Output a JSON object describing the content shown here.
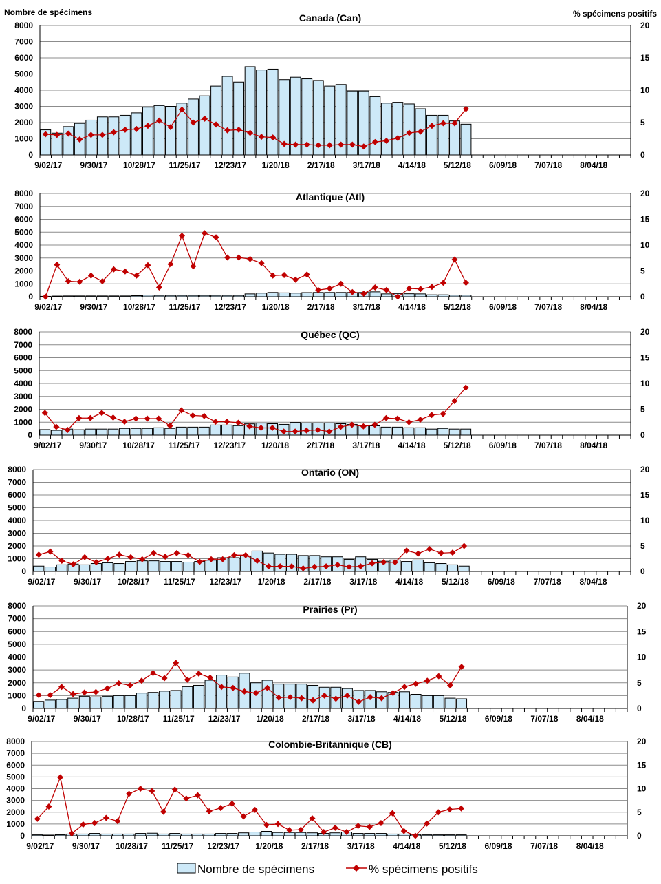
{
  "headers": {
    "left_axis": "Nombre de spécimens",
    "right_axis": "% spécimens positifs"
  },
  "legend": {
    "bars": "Nombre de spécimens",
    "line": "% spécimens positifs"
  },
  "colors": {
    "bar_fill": "#cde9f8",
    "line": "#c00000",
    "grid": "#8c8c8c"
  },
  "chart_data": [
    {
      "type": "bar+line",
      "title": "Canada (Can)",
      "ylim": [
        0,
        8000
      ],
      "y2lim": [
        0,
        20
      ],
      "yticks": [
        0,
        1000,
        2000,
        3000,
        4000,
        5000,
        6000,
        7000,
        8000
      ],
      "y2ticks": [
        0,
        5,
        10,
        15,
        20
      ],
      "xticklabels": [
        "9/02/17",
        "9/30/17",
        "10/28/17",
        "11/25/17",
        "12/23/17",
        "1/20/18",
        "2/17/18",
        "3/17/18",
        "4/14/18",
        "5/12/18",
        "6/09/18",
        "7/07/18",
        "8/04/18"
      ],
      "weeks": 52,
      "specimens": [
        1550,
        1350,
        1750,
        1950,
        2150,
        2350,
        2350,
        2450,
        2600,
        2950,
        3050,
        3000,
        3200,
        3450,
        3650,
        4250,
        4850,
        4500,
        5450,
        5250,
        5300,
        4650,
        4800,
        4700,
        4600,
        4250,
        4350,
        3950,
        3950,
        3600,
        3200,
        3250,
        3150,
        2850,
        2450,
        2450,
        2100,
        1900
      ],
      "pct_positive": [
        3.2,
        3.1,
        3.3,
        2.4,
        3.1,
        3.1,
        3.5,
        3.9,
        4.0,
        4.5,
        5.3,
        4.3,
        7.0,
        5.0,
        5.6,
        4.7,
        3.8,
        3.9,
        3.4,
        2.8,
        2.7,
        1.7,
        1.6,
        1.6,
        1.5,
        1.5,
        1.6,
        1.6,
        1.3,
        2.0,
        2.2,
        2.6,
        3.4,
        3.6,
        4.5,
        4.9,
        4.9,
        7.1
      ]
    },
    {
      "type": "bar+line",
      "title": "Atlantique (Atl)",
      "ylim": [
        0,
        8000
      ],
      "y2lim": [
        0,
        20
      ],
      "yticks": [
        0,
        1000,
        2000,
        3000,
        4000,
        5000,
        6000,
        7000,
        8000
      ],
      "y2ticks": [
        0,
        5,
        10,
        15,
        20
      ],
      "xticklabels": [
        "9/02/17",
        "9/30/17",
        "10/28/17",
        "11/25/17",
        "12/23/17",
        "1/20/18",
        "2/17/18",
        "3/17/18",
        "4/14/18",
        "5/12/18",
        "6/09/18",
        "7/07/18",
        "8/04/18"
      ],
      "weeks": 52,
      "specimens": [
        30,
        50,
        60,
        60,
        60,
        60,
        60,
        60,
        80,
        120,
        100,
        100,
        100,
        100,
        100,
        100,
        100,
        100,
        220,
        280,
        330,
        300,
        280,
        320,
        330,
        330,
        330,
        330,
        330,
        380,
        220,
        250,
        230,
        220,
        150,
        150,
        120,
        120
      ],
      "pct_positive": [
        0,
        6.2,
        3.0,
        2.9,
        4.1,
        3.0,
        5.3,
        4.9,
        4.1,
        6.1,
        1.8,
        6.3,
        11.8,
        5.9,
        12.3,
        11.5,
        7.6,
        7.6,
        7.3,
        6.5,
        4.1,
        4.2,
        3.3,
        4.3,
        1.3,
        1.6,
        2.5,
        0.9,
        0.6,
        1.8,
        1.3,
        0,
        1.6,
        1.5,
        1.9,
        2.7,
        7.2,
        2.7
      ]
    },
    {
      "type": "bar+line",
      "title": "Québec (QC)",
      "ylim": [
        0,
        8000
      ],
      "y2lim": [
        0,
        20
      ],
      "yticks": [
        0,
        1000,
        2000,
        3000,
        4000,
        5000,
        6000,
        7000,
        8000
      ],
      "y2ticks": [
        0,
        5,
        10,
        15,
        20
      ],
      "xticklabels": [
        "9/02/17",
        "9/30/17",
        "10/28/17",
        "11/25/17",
        "12/23/17",
        "1/20/18",
        "2/17/18",
        "3/17/18",
        "4/14/18",
        "5/12/18",
        "6/09/18",
        "7/07/18",
        "8/04/18"
      ],
      "weeks": 52,
      "specimens": [
        430,
        370,
        470,
        420,
        470,
        470,
        470,
        520,
        520,
        520,
        570,
        520,
        620,
        620,
        620,
        780,
        780,
        730,
        870,
        930,
        880,
        830,
        980,
        940,
        940,
        940,
        880,
        830,
        730,
        720,
        620,
        620,
        570,
        570,
        470,
        520,
        470,
        470
      ],
      "pct_positive": [
        4.3,
        1.6,
        1.0,
        3.3,
        3.3,
        4.3,
        3.4,
        2.6,
        3.2,
        3.2,
        3.2,
        1.8,
        4.8,
        3.8,
        3.7,
        2.6,
        2.6,
        2.4,
        1.7,
        1.4,
        1.4,
        0.7,
        0.7,
        0.9,
        1.0,
        0.7,
        1.6,
        2.0,
        1.7,
        2.0,
        3.3,
        3.2,
        2.5,
        3.0,
        3.9,
        4.1,
        6.6,
        9.2
      ]
    },
    {
      "type": "bar+line",
      "title": "Ontario (ON)",
      "ylim": [
        0,
        8000
      ],
      "y2lim": [
        0,
        20
      ],
      "yticks": [
        0,
        1000,
        2000,
        3000,
        4000,
        5000,
        6000,
        7000,
        8000
      ],
      "y2ticks": [
        0,
        5,
        10,
        15,
        20
      ],
      "xticklabels": [
        "9/02/17",
        "9/30/17",
        "10/28/17",
        "11/25/17",
        "12/23/17",
        "1/20/18",
        "2/17/18",
        "3/17/18",
        "4/14/18",
        "5/12/18",
        "6/09/18",
        "7/07/18",
        "8/04/18"
      ],
      "weeks": 52,
      "specimens": [
        420,
        350,
        520,
        580,
        520,
        620,
        680,
        620,
        780,
        830,
        830,
        780,
        780,
        730,
        780,
        880,
        1080,
        1080,
        1220,
        1600,
        1450,
        1350,
        1350,
        1250,
        1250,
        1150,
        1150,
        950,
        1150,
        950,
        800,
        900,
        780,
        900,
        680,
        620,
        520,
        420
      ],
      "pct_positive": [
        3.3,
        3.9,
        2.1,
        1.4,
        2.8,
        1.8,
        2.5,
        3.3,
        2.8,
        2.4,
        3.6,
        2.9,
        3.6,
        3.2,
        1.9,
        2.4,
        2.4,
        3.2,
        3.2,
        2.1,
        1.0,
        1.0,
        1.0,
        0.6,
        0.9,
        1.0,
        1.3,
        0.9,
        1.0,
        1.6,
        1.8,
        1.8,
        4.1,
        3.5,
        4.4,
        3.6,
        3.7,
        5.0
      ]
    },
    {
      "type": "bar+line",
      "title": "Prairies (Pr)",
      "ylim": [
        0,
        8000
      ],
      "y2lim": [
        0,
        20
      ],
      "yticks": [
        0,
        1000,
        2000,
        3000,
        4000,
        5000,
        6000,
        7000,
        8000
      ],
      "y2ticks": [
        0,
        5,
        10,
        15,
        20
      ],
      "xticklabels": [
        "9/02/17",
        "9/30/17",
        "10/28/17",
        "11/25/17",
        "12/23/17",
        "1/20/18",
        "2/17/18",
        "3/17/18",
        "4/14/18",
        "5/12/18",
        "6/09/18",
        "7/07/18",
        "8/04/18"
      ],
      "weeks": 52,
      "specimens": [
        550,
        650,
        700,
        800,
        950,
        900,
        950,
        1000,
        1000,
        1200,
        1250,
        1350,
        1400,
        1700,
        1800,
        2200,
        2600,
        2450,
        2750,
        2000,
        2200,
        1900,
        1900,
        1900,
        1800,
        1650,
        1650,
        1550,
        1400,
        1400,
        1300,
        1250,
        1300,
        1100,
        1000,
        1000,
        800,
        750
      ],
      "pct_positive": [
        2.6,
        2.6,
        4.2,
        2.8,
        3.1,
        3.2,
        3.9,
        4.9,
        4.5,
        5.4,
        6.9,
        5.9,
        8.9,
        5.6,
        6.8,
        6.0,
        4.2,
        4.0,
        3.3,
        3.0,
        4.0,
        2.1,
        2.2,
        2.0,
        1.6,
        2.5,
        1.9,
        2.5,
        1.3,
        2.2,
        2.0,
        3.0,
        4.2,
        4.8,
        5.4,
        6.3,
        4.5,
        8.1
      ]
    },
    {
      "type": "bar+line",
      "title": "Colombie-Britannique (CB)",
      "ylim": [
        0,
        8000
      ],
      "y2lim": [
        0,
        20
      ],
      "yticks": [
        0,
        1000,
        2000,
        3000,
        4000,
        5000,
        6000,
        7000,
        8000
      ],
      "y2ticks": [
        0,
        5,
        10,
        15,
        20
      ],
      "xticklabels": [
        "9/02/17",
        "9/30/17",
        "10/28/17",
        "11/25/17",
        "12/23/17",
        "1/20/18",
        "2/17/18",
        "3/17/18",
        "4/14/18",
        "5/12/18",
        "6/09/18",
        "7/07/18",
        "8/04/18"
      ],
      "weeks": 52,
      "specimens": [
        80,
        60,
        90,
        150,
        150,
        200,
        150,
        150,
        150,
        200,
        220,
        150,
        200,
        150,
        150,
        150,
        200,
        200,
        250,
        320,
        380,
        280,
        280,
        280,
        250,
        200,
        250,
        320,
        200,
        200,
        200,
        150,
        150,
        100,
        80,
        80,
        80,
        80
      ],
      "pct_positive": [
        3.6,
        6.2,
        12.4,
        0.5,
        2.4,
        2.7,
        3.8,
        3.1,
        8.9,
        10.0,
        9.5,
        5.1,
        9.8,
        7.9,
        8.6,
        5.2,
        5.9,
        6.8,
        4.1,
        5.5,
        2.3,
        2.5,
        1.2,
        1.3,
        3.7,
        0.8,
        1.7,
        0.8,
        2.1,
        1.9,
        2.7,
        4.8,
        1.0,
        0,
        2.6,
        5.0,
        5.6,
        5.8
      ]
    }
  ]
}
